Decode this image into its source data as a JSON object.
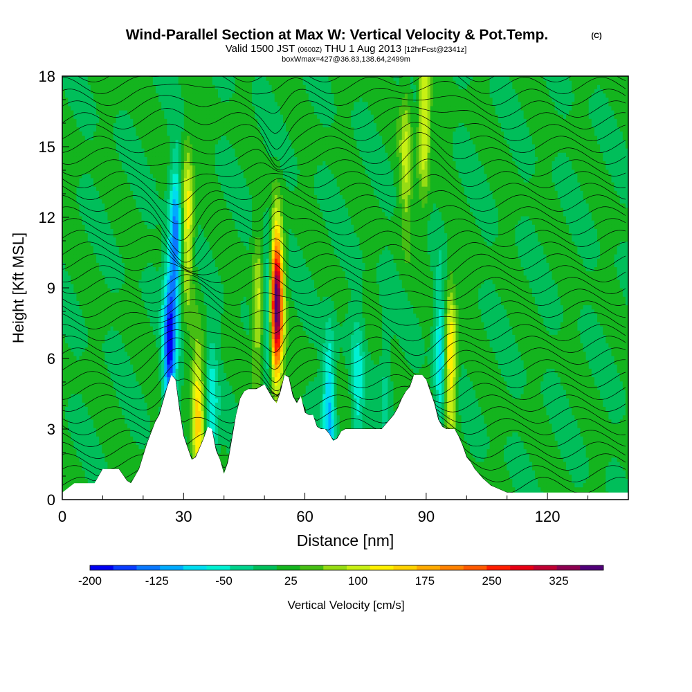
{
  "chart_data": {
    "type": "heatmap",
    "title": "Wind-Parallel Section at Max W: Vertical Velocity & Pot.Temp.",
    "title_mark": "(C)",
    "subtitle_main": "Valid 1500 JST",
    "subtitle_utc": "(0600Z)",
    "subtitle_date": "THU 1 Aug 2013",
    "subtitle_fcst": "[12hrFcst@2341z]",
    "subtitle_box": "boxWmax=427@36.83,138.64,2499m",
    "xlabel": "Distance [nm]",
    "ylabel": "Height [Kft MSL]",
    "xlim": [
      0,
      140
    ],
    "ylim": [
      0,
      18
    ],
    "x_ticks": [
      "0",
      "30",
      "60",
      "90",
      "120"
    ],
    "x_tick_values": [
      0,
      30,
      60,
      90,
      120
    ],
    "y_ticks": [
      "0",
      "3",
      "6",
      "9",
      "12",
      "15",
      "18"
    ],
    "y_tick_values": [
      0,
      3,
      6,
      9,
      12,
      15,
      18
    ],
    "colorbar": {
      "label": "Vertical Velocity [cm/s]",
      "min": -200,
      "max": 375,
      "tick_labels": [
        "-200",
        "-125",
        "-50",
        "25",
        "100",
        "175",
        "250",
        "325"
      ],
      "tick_values": [
        -200,
        -125,
        -50,
        25,
        100,
        175,
        250,
        325
      ],
      "colors": [
        "#0000f0",
        "#0a3cff",
        "#0a78ff",
        "#00aaff",
        "#00dcf0",
        "#00f0d2",
        "#00d28c",
        "#00be5a",
        "#14b41e",
        "#46be14",
        "#96dc14",
        "#c8f014",
        "#fff000",
        "#ffd200",
        "#ffaa00",
        "#ff8200",
        "#ff5a00",
        "#ff1e00",
        "#e60014",
        "#be0032",
        "#8c0050",
        "#500078"
      ]
    },
    "terrain_kft": [
      [
        0,
        0.3
      ],
      [
        3,
        0.7
      ],
      [
        8,
        0.7
      ],
      [
        10,
        1.3
      ],
      [
        14,
        1.3
      ],
      [
        16,
        0.8
      ],
      [
        17,
        0.7
      ],
      [
        19,
        1.3
      ],
      [
        21,
        2.4
      ],
      [
        23,
        3.3
      ],
      [
        24,
        3.6
      ],
      [
        25,
        4.2
      ],
      [
        26,
        4.8
      ],
      [
        27,
        5.3
      ],
      [
        28,
        5.1
      ],
      [
        29,
        3.8
      ],
      [
        30,
        2.7
      ],
      [
        31,
        2.2
      ],
      [
        32,
        1.7
      ],
      [
        33,
        1.8
      ],
      [
        34,
        2.2
      ],
      [
        35,
        2.6
      ],
      [
        36,
        3.1
      ],
      [
        37,
        3.0
      ],
      [
        38,
        2.1
      ],
      [
        39,
        1.7
      ],
      [
        40,
        1.1
      ],
      [
        41,
        1.6
      ],
      [
        42,
        2.6
      ],
      [
        43,
        3.6
      ],
      [
        44,
        4.3
      ],
      [
        45,
        4.6
      ],
      [
        46,
        4.7
      ],
      [
        48,
        4.7
      ],
      [
        50,
        4.9
      ],
      [
        52,
        4.3
      ],
      [
        53,
        4.1
      ],
      [
        54,
        4.6
      ],
      [
        55,
        5.3
      ],
      [
        56,
        5.2
      ],
      [
        57,
        4.4
      ],
      [
        58,
        4.1
      ],
      [
        59,
        4.4
      ],
      [
        60,
        3.7
      ],
      [
        61,
        3.6
      ],
      [
        62,
        3.6
      ],
      [
        63,
        3.1
      ],
      [
        64,
        3.0
      ],
      [
        65,
        3.0
      ],
      [
        66,
        2.8
      ],
      [
        67,
        2.5
      ],
      [
        68,
        2.6
      ],
      [
        69,
        2.9
      ],
      [
        70,
        3.0
      ],
      [
        72,
        3.0
      ],
      [
        76,
        3.0
      ],
      [
        79,
        3.0
      ],
      [
        80,
        3.2
      ],
      [
        81,
        3.4
      ],
      [
        82,
        3.6
      ],
      [
        83,
        3.9
      ],
      [
        84,
        4.3
      ],
      [
        85,
        4.6
      ],
      [
        86,
        4.8
      ],
      [
        87,
        5.3
      ],
      [
        89,
        5.3
      ],
      [
        90,
        5.1
      ],
      [
        91,
        4.6
      ],
      [
        92,
        4.1
      ],
      [
        93,
        3.4
      ],
      [
        94,
        3.1
      ],
      [
        95,
        3.0
      ],
      [
        97,
        3.0
      ],
      [
        98,
        2.7
      ],
      [
        99,
        2.3
      ],
      [
        100,
        1.8
      ],
      [
        101,
        1.6
      ],
      [
        102,
        1.3
      ],
      [
        104,
        0.9
      ],
      [
        106,
        0.6
      ],
      [
        110,
        0.3
      ],
      [
        140,
        0.3
      ]
    ],
    "w_features": [
      {
        "x": 26.5,
        "z": 6.5,
        "w": -190
      },
      {
        "x": 28.0,
        "z": 11.0,
        "w": -150
      },
      {
        "x": 31.0,
        "z": 12.0,
        "w": 120
      },
      {
        "x": 33.5,
        "z": 3.5,
        "w": 130
      },
      {
        "x": 37.0,
        "z": 3.5,
        "w": -80
      },
      {
        "x": 48.5,
        "z": 8.0,
        "w": 90
      },
      {
        "x": 51.0,
        "z": 8.5,
        "w": -90
      },
      {
        "x": 53.0,
        "z": 8.3,
        "w": 370
      },
      {
        "x": 66.0,
        "z": 4.0,
        "w": -110
      },
      {
        "x": 73.0,
        "z": 4.5,
        "w": -70
      },
      {
        "x": 80.0,
        "z": 5.0,
        "w": -40
      },
      {
        "x": 85.0,
        "z": 14.5,
        "w": 80
      },
      {
        "x": 89.5,
        "z": 16.0,
        "w": 110
      },
      {
        "x": 93.5,
        "z": 6.0,
        "w": -100
      },
      {
        "x": 96.0,
        "z": 6.0,
        "w": 140
      }
    ]
  }
}
